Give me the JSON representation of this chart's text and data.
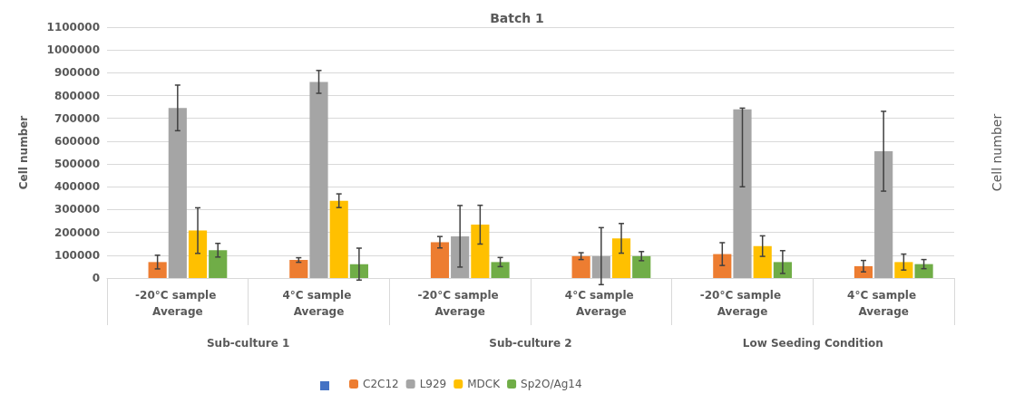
{
  "chart_data": {
    "type": "bar",
    "title": "Batch 1",
    "ylabel": "Cell number",
    "y2label": "Cell number",
    "categories": [
      "-20°C sample Average",
      "4°C sample Average",
      "-20°C sample Average",
      "4°C sample Average",
      "-20°C sample Average",
      "4°C sample Average"
    ],
    "annotations": [
      "Sub-culture 1",
      "Sub-culture 2",
      "Low Seeding Condition"
    ],
    "series": [
      {
        "color": "#4472c4",
        "values": [
          null,
          null,
          null,
          null,
          null,
          null
        ]
      },
      {
        "name": "C2C12",
        "color": "#ed7d31",
        "values": [
          70000,
          79000,
          157000,
          96000,
          105000,
          52000
        ],
        "errors": [
          30000,
          10000,
          25000,
          15000,
          50000,
          25000
        ]
      },
      {
        "name": "L929",
        "color": "#a5a5a5",
        "values": [
          746000,
          860000,
          183000,
          96000,
          740000,
          556000
        ],
        "errors": [
          100000,
          50000,
          135000,
          125000,
          [
            400000,
            745000
          ],
          175000
        ]
      },
      {
        "name": "MDCK",
        "color": "#ffc000",
        "values": [
          208000,
          339000,
          234000,
          174000,
          140000,
          70000
        ],
        "errors": [
          100000,
          30000,
          85000,
          65000,
          45000,
          35000
        ]
      },
      {
        "name": "Sp2O/Ag14",
        "color": "#70ad47",
        "values": [
          122000,
          61000,
          70000,
          96000,
          70000,
          61000
        ],
        "errors": [
          30000,
          70000,
          20000,
          20000,
          50000,
          20000
        ]
      }
    ],
    "ylim": [
      0,
      1100000
    ],
    "yticks": [
      0,
      100000,
      200000,
      300000,
      400000,
      500000,
      600000,
      700000,
      800000,
      900000,
      1000000,
      1100000
    ],
    "grid": "y",
    "legend": "bottom"
  }
}
